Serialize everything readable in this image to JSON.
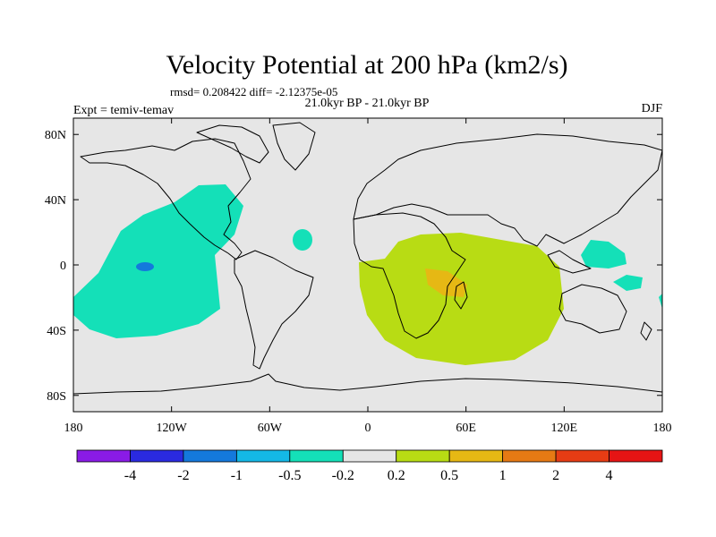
{
  "title": "Velocity Potential at 200 hPa (km2/s)",
  "stats": "rmsd= 0.208422 diff= -2.12375e-05",
  "experiment": "Expt = temiv-temav",
  "period": "21.0kyr BP - 21.0kyr BP",
  "season": "DJF",
  "map": {
    "lat_ticks": [
      {
        "value": 80,
        "label": "80N"
      },
      {
        "value": 40,
        "label": "40N"
      },
      {
        "value": 0,
        "label": "0"
      },
      {
        "value": -40,
        "label": "40S"
      },
      {
        "value": -80,
        "label": "80S"
      }
    ],
    "lon_ticks": [
      {
        "value": -180,
        "label": "180"
      },
      {
        "value": -120,
        "label": "120W"
      },
      {
        "value": -60,
        "label": "60W"
      },
      {
        "value": 0,
        "label": "0"
      },
      {
        "value": 60,
        "label": "60E"
      },
      {
        "value": 120,
        "label": "120E"
      },
      {
        "value": 180,
        "label": "180"
      }
    ],
    "background_color": "#e6e6e6"
  },
  "colorbar": {
    "colors": [
      "#8a1be6",
      "#2a2ae0",
      "#1479dc",
      "#14b8e6",
      "#14e0b8",
      "#e6e6e6",
      "#b8dc14",
      "#e6b814",
      "#e67a14",
      "#e63c14",
      "#e61414"
    ],
    "labels": [
      "-4",
      "-2",
      "-1",
      "-0.5",
      "-0.2",
      "0.2",
      "0.5",
      "1",
      "2",
      "4"
    ]
  }
}
